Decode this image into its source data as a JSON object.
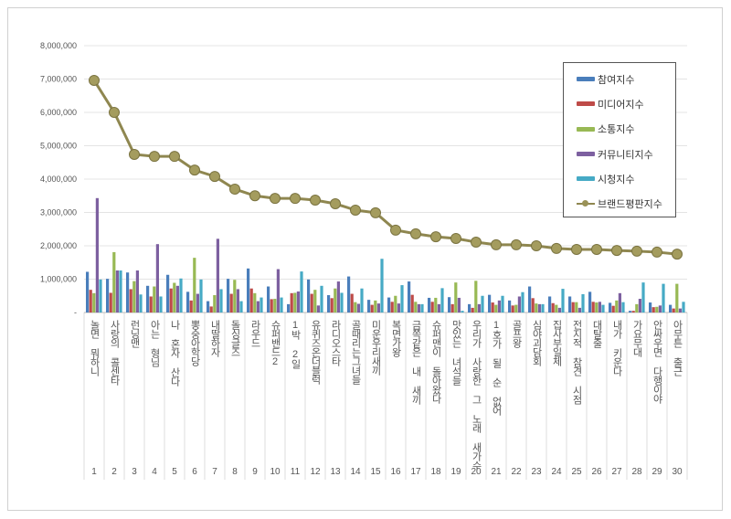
{
  "chart_data": {
    "type": "bar",
    "title": "",
    "xlabel": "",
    "ylabel": "",
    "ylim": [
      0,
      8000000
    ],
    "yticks": [
      "-",
      "1,000,000",
      "2,000,000",
      "3,000,000",
      "4,000,000",
      "5,000,000",
      "6,000,000",
      "7,000,000",
      "8,000,000"
    ],
    "grid": true,
    "legend_position": "top-right",
    "ranks": [
      "1",
      "2",
      "3",
      "4",
      "5",
      "6",
      "7",
      "8",
      "9",
      "10",
      "11",
      "12",
      "13",
      "14",
      "15",
      "16",
      "17",
      "18",
      "19",
      "20",
      "21",
      "22",
      "23",
      "24",
      "25",
      "26",
      "27",
      "28",
      "29",
      "30"
    ],
    "categories": [
      "놀면 뭐하니",
      "사랑의 콜센타",
      "런닝맨",
      "아는 형님",
      "나 혼자 산다",
      "뽕숭아학당",
      "내딸하자",
      "돌싱글즈",
      "라우드",
      "슈퍼밴드2",
      "1박 2일",
      "유퀴즈온더블럭",
      "라디오스타",
      "골때리는그녀들",
      "미운우리새끼",
      "복면가왕",
      "금쪽같은 내 새끼",
      "슈퍼맨이 돌아왔다",
      "맛있는 녀석들",
      "우리가 사랑한 그 노래 새가수",
      "1호가 될 순 없어",
      "골프왕",
      "심야괴담회",
      "집사부일체",
      "전지적 참견 시점",
      "대탈출",
      "내가 키운다",
      "가요무대",
      "안싸우면 다행이야",
      "아무튼 출근"
    ],
    "series": [
      {
        "name": "참여지수",
        "kind": "bar",
        "color": "#4a7ebb",
        "values": [
          1220000,
          1010000,
          1200000,
          800000,
          1130000,
          620000,
          340000,
          1010000,
          1320000,
          780000,
          250000,
          990000,
          520000,
          1080000,
          380000,
          450000,
          930000,
          440000,
          460000,
          250000,
          530000,
          360000,
          780000,
          480000,
          480000,
          620000,
          290000,
          50000,
          300000,
          230000
        ]
      },
      {
        "name": "미디어지수",
        "kind": "bar",
        "color": "#be4b48",
        "values": [
          680000,
          590000,
          700000,
          480000,
          720000,
          360000,
          180000,
          560000,
          720000,
          400000,
          580000,
          560000,
          430000,
          560000,
          230000,
          320000,
          530000,
          320000,
          250000,
          140000,
          300000,
          210000,
          430000,
          280000,
          310000,
          320000,
          200000,
          50000,
          160000,
          120000
        ]
      },
      {
        "name": "소통지수",
        "kind": "bar",
        "color": "#98b954",
        "values": [
          580000,
          1810000,
          940000,
          780000,
          890000,
          1640000,
          520000,
          980000,
          580000,
          410000,
          590000,
          680000,
          720000,
          310000,
          360000,
          500000,
          320000,
          440000,
          900000,
          950000,
          230000,
          230000,
          270000,
          230000,
          310000,
          300000,
          360000,
          250000,
          170000,
          860000
        ]
      },
      {
        "name": "커뮤니티지수",
        "kind": "bar",
        "color": "#7d60a0",
        "values": [
          3430000,
          1260000,
          1260000,
          2050000,
          800000,
          560000,
          2210000,
          700000,
          340000,
          1300000,
          630000,
          210000,
          930000,
          260000,
          270000,
          270000,
          250000,
          250000,
          440000,
          250000,
          360000,
          480000,
          250000,
          140000,
          140000,
          320000,
          580000,
          410000,
          210000,
          120000
        ]
      },
      {
        "name": "시청지수",
        "kind": "bar",
        "color": "#46aac5",
        "values": [
          990000,
          1260000,
          540000,
          480000,
          1020000,
          990000,
          700000,
          340000,
          450000,
          450000,
          1230000,
          800000,
          590000,
          720000,
          1610000,
          820000,
          250000,
          730000,
          50000,
          500000,
          500000,
          610000,
          250000,
          710000,
          550000,
          230000,
          310000,
          900000,
          860000,
          320000
        ]
      },
      {
        "name": "브랜드평판지수",
        "kind": "line",
        "color": "#8f8750",
        "values": [
          6960000,
          6000000,
          4740000,
          4680000,
          4680000,
          4270000,
          4080000,
          3700000,
          3500000,
          3420000,
          3420000,
          3370000,
          3260000,
          3070000,
          2990000,
          2470000,
          2360000,
          2270000,
          2220000,
          2110000,
          2030000,
          2030000,
          2000000,
          1920000,
          1890000,
          1890000,
          1860000,
          1840000,
          1810000,
          1750000
        ]
      }
    ]
  }
}
